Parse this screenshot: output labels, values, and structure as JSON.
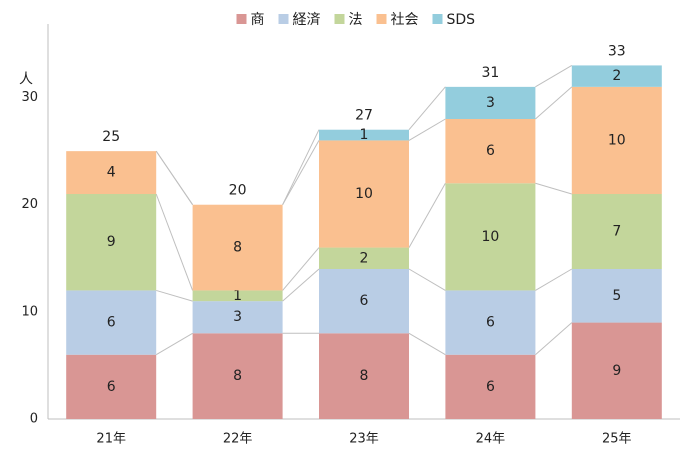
{
  "chart_data": {
    "type": "bar",
    "stacked": true,
    "categories": [
      "21年",
      "22年",
      "23年",
      "24年",
      "25年"
    ],
    "series": [
      {
        "name": "商",
        "color": "#d99694",
        "values": [
          6,
          8,
          8,
          6,
          9
        ]
      },
      {
        "name": "経済",
        "color": "#b9cde5",
        "values": [
          6,
          3,
          6,
          6,
          5
        ]
      },
      {
        "name": "法",
        "color": "#c3d69b",
        "values": [
          9,
          1,
          2,
          10,
          7
        ]
      },
      {
        "name": "社会",
        "color": "#fac090",
        "values": [
          4,
          8,
          10,
          6,
          10
        ]
      },
      {
        "name": "SDS",
        "color": "#93cddd",
        "values": [
          0,
          0,
          1,
          3,
          2
        ]
      }
    ],
    "totals": [
      25,
      20,
      27,
      31,
      33
    ],
    "ylabel": "人",
    "ylim": [
      0,
      35
    ],
    "yticks": [
      0,
      10,
      20,
      30
    ],
    "grid": false,
    "series_lines": true,
    "legend_position": "top"
  }
}
